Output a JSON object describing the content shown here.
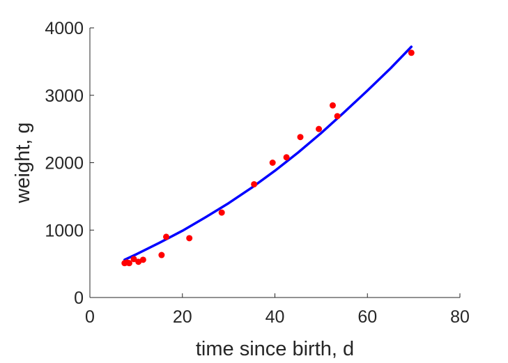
{
  "colors": {
    "fit_line": "#0000ff",
    "data_points": "#ff0000",
    "axis": "#262626",
    "background": "#ffffff"
  },
  "chart_data": {
    "type": "scatter",
    "title": "",
    "xlabel": "time since birth, d",
    "ylabel": "weight, g",
    "xlim": [
      0,
      80
    ],
    "ylim": [
      0,
      4000
    ],
    "xticks": [
      0,
      20,
      40,
      60,
      80
    ],
    "yticks": [
      0,
      1000,
      2000,
      3000,
      4000
    ],
    "xtick_labels": [
      "0",
      "20",
      "40",
      "60",
      "80"
    ],
    "ytick_labels": [
      "0",
      "1000",
      "2000",
      "3000",
      "4000"
    ],
    "grid": false,
    "box": false,
    "series": [
      {
        "kind": "points",
        "color": "#ff0000",
        "x": [
          7.5,
          8,
          8.5,
          9.5,
          10.5,
          11.5,
          15.5,
          16.5,
          21.5,
          28.5,
          35.5,
          39.5,
          42.5,
          45.5,
          49.5,
          52.5,
          53.5,
          69.5
        ],
        "y": [
          510,
          520,
          510,
          570,
          530,
          560,
          630,
          900,
          880,
          1260,
          1680,
          2000,
          2080,
          2380,
          2500,
          2850,
          2690,
          3630
        ]
      },
      {
        "kind": "line",
        "color": "#0000ff",
        "x": [
          7.5,
          10,
          15,
          20,
          25,
          30,
          35,
          40,
          45,
          50,
          55,
          60,
          65,
          69.5
        ],
        "y": [
          560,
          640,
          810,
          990,
          1190,
          1400,
          1630,
          1880,
          2150,
          2440,
          2750,
          3070,
          3400,
          3720
        ]
      }
    ]
  }
}
